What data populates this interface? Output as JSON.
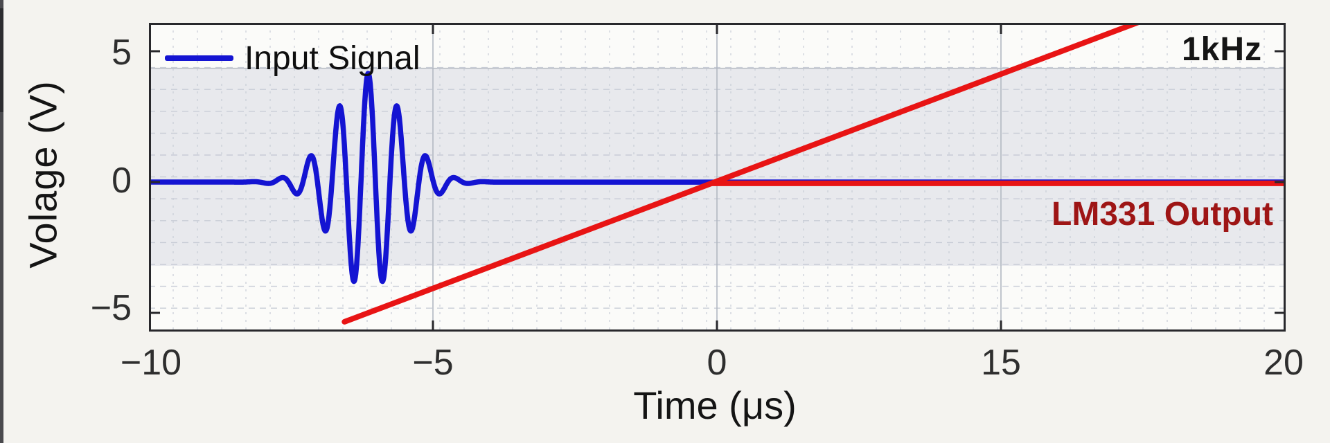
{
  "page": {
    "background": "#f4f3ef"
  },
  "chart_data": {
    "type": "line",
    "title": "",
    "xlabel": "Time (μs)",
    "ylabel": "Volage (V)",
    "x_tick_labels": [
      "−10",
      "−5",
      "0",
      "15",
      "20"
    ],
    "x_tick_values": [
      -10,
      -5,
      0,
      15,
      20
    ],
    "x_axis_note": "five evenly spaced ticks although labels jump 0→15 (time scale compressed between 0 and 15 μs)",
    "y_tick_labels": [
      "5",
      "0",
      "−5"
    ],
    "y_tick_values": [
      5,
      0,
      -5
    ],
    "ylim": [
      -5.75,
      6.1
    ],
    "grid": {
      "visible": true,
      "style": "dashed minor grid, solid light major verticals at ticks"
    },
    "shaded_band": {
      "v_range": [
        -3.2,
        4.35
      ],
      "color": "#e8e9ed",
      "edge_color": "#b6bac2"
    },
    "legend": {
      "position": "top-left",
      "entries": [
        {
          "label": "Input Signal",
          "color": "#1414d2"
        }
      ]
    },
    "annotations": [
      {
        "text": "1kHz",
        "color": "#151515",
        "position": "top-right inside plot"
      },
      {
        "text": "LM331 Output",
        "color": "#9e1515",
        "position": "right side, just below zero line"
      }
    ],
    "series": [
      {
        "name": "Input Signal",
        "color": "#1414d2",
        "shape": "gaussian-windowed sinusoid burst on a zero-volt baseline",
        "baseline_v": 0,
        "packet": {
          "amplitude_v": 4.15,
          "center_t_us": -6.14,
          "sigma_us": 0.85,
          "freq_cycles_per_us": 1.96,
          "visible_span_us": [
            -7.7,
            -4.85
          ]
        },
        "key_extrema_t_v": [
          [
            -7.32,
            -0.5
          ],
          [
            -7.09,
            1.3
          ],
          [
            -6.89,
            -2.0
          ],
          [
            -6.65,
            3.3
          ],
          [
            -6.38,
            -4.15
          ],
          [
            -6.13,
            3.65
          ],
          [
            -5.88,
            -4.3
          ],
          [
            -5.63,
            2.95
          ],
          [
            -5.44,
            -1.2
          ],
          [
            -5.27,
            1.0
          ],
          [
            -5.1,
            -0.3
          ]
        ]
      },
      {
        "name": "LM331 Output",
        "color": "#e81414",
        "ramp": {
          "from": {
            "x_frac": 0.172,
            "v": -5.34
          },
          "to": {
            "x_frac": 0.87,
            "v": 6.1
          },
          "crosses_zero_at_t_us": 0
        },
        "flat": {
          "v": -0.05,
          "from_x_frac": 0.495,
          "to_x_frac": 1.0
        }
      }
    ],
    "plot_style": {
      "background": "#fbfbf9",
      "spine_color": "#28282c",
      "grid_dash_color": "#c8ccd6",
      "grid_major_color": "#b2b8c2",
      "tick_direction": "in, on all four spines"
    }
  }
}
